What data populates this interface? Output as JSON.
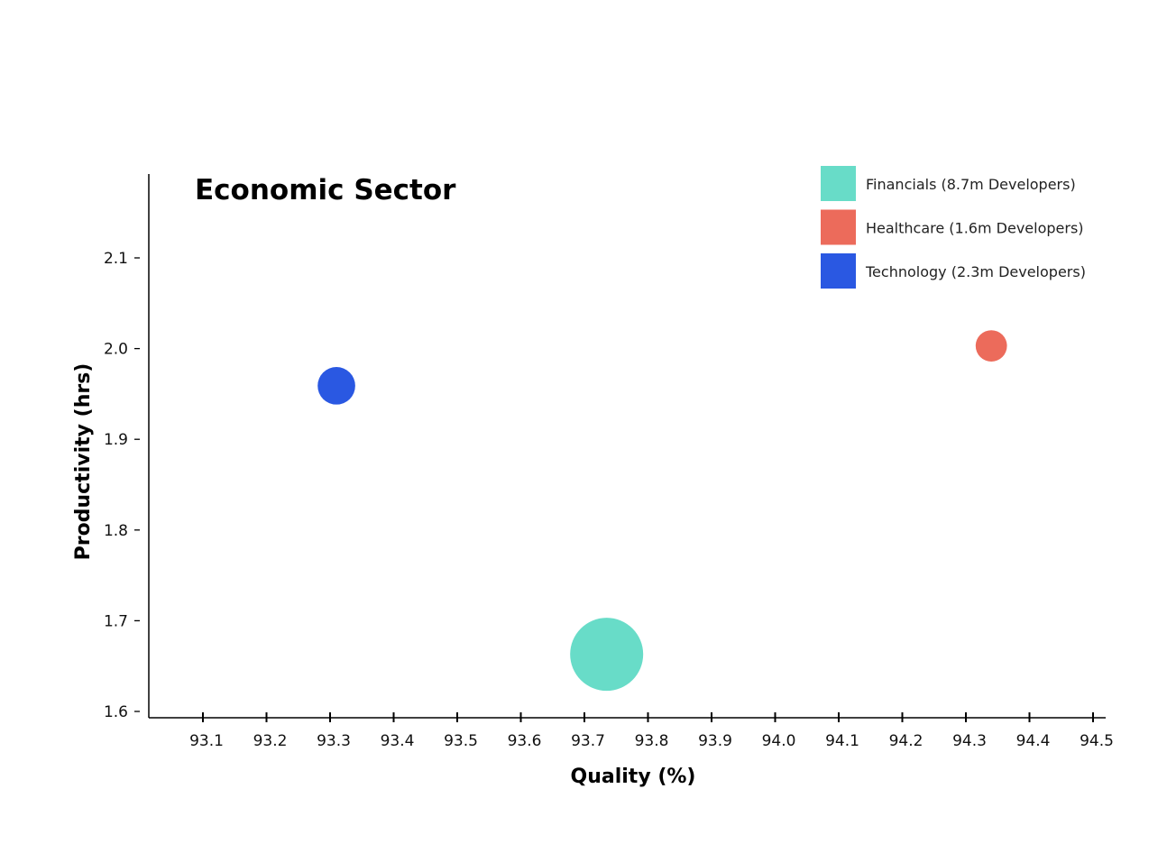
{
  "chart_data": {
    "type": "scatter",
    "title": "Economic Sector",
    "xlabel": "Quality (%)",
    "ylabel": "Productivity (hrs)",
    "xlim": [
      93.01,
      94.52
    ],
    "ylim": [
      1.59,
      2.185
    ],
    "x_ticks": [
      "93.1",
      "93.2",
      "93.3",
      "93.4",
      "93.5",
      "93.6",
      "93.7",
      "93.8",
      "93.9",
      "94.0",
      "94.1",
      "94.2",
      "94.3",
      "94.4",
      "94.5"
    ],
    "y_ticks": [
      "1.6",
      "1.7",
      "1.8",
      "1.9",
      "2.0",
      "2.1"
    ],
    "grid": false,
    "legend_position": "top-right",
    "series": [
      {
        "name": "Financials (8.7m Developers)",
        "x": 93.735,
        "y": 1.663,
        "size": 8.7,
        "color": "#68dcc8"
      },
      {
        "name": "Healthcare (1.6m Developers)",
        "x": 94.34,
        "y": 2.003,
        "size": 1.6,
        "color": "#ec6b5b"
      },
      {
        "name": "Technology (2.3m Developers)",
        "x": 93.31,
        "y": 1.959,
        "size": 2.3,
        "color": "#2a58e2"
      }
    ]
  }
}
